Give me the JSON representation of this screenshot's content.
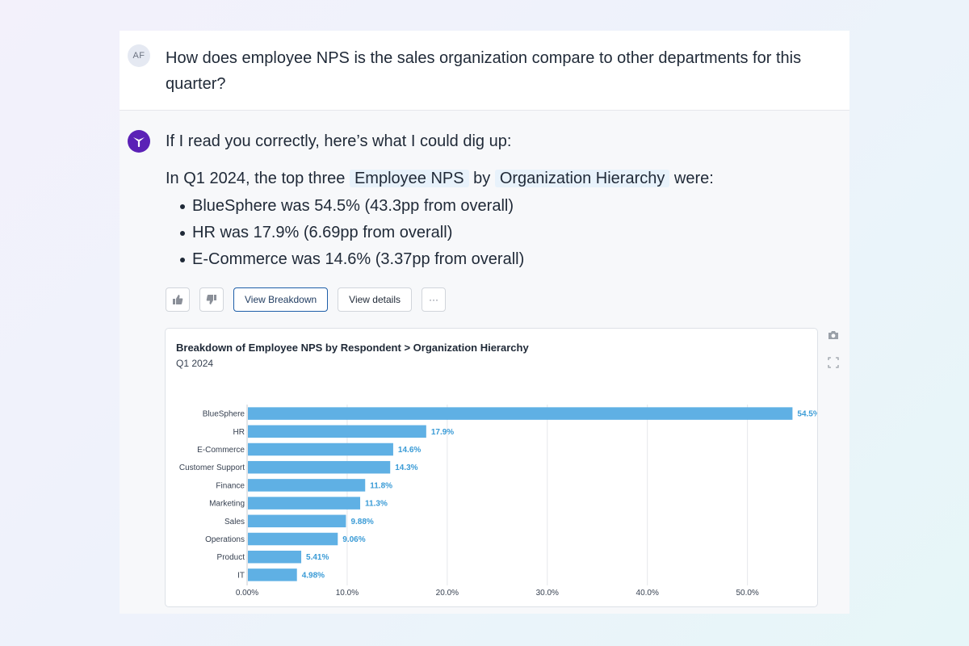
{
  "user": {
    "avatar_initials": "AF",
    "question": "How does employee NPS is the sales organization compare to other departments for this quarter?"
  },
  "response": {
    "intro": "If I read you correctly, here’s what I could dig up:",
    "summary_prefix": "In Q1 2024, the top three",
    "metric_chip": "Employee NPS",
    "by_word": "by",
    "dimension_chip": "Organization Hierarchy",
    "summary_suffix": "were:",
    "bullets": [
      "BlueSphere was 54.5% (43.3pp from overall)",
      "HR was 17.9% (6.69pp from overall)",
      "E-Commerce was 14.6% (3.37pp from overall)"
    ]
  },
  "actions": {
    "thumbs_up": "thumbs-up-icon",
    "thumbs_down": "thumbs-down-icon",
    "view_breakdown": "View Breakdown",
    "view_details": "View details",
    "more": "···"
  },
  "side_tools": {
    "camera": "camera-icon",
    "expand": "expand-icon"
  },
  "colors": {
    "bar": "#5fb0e4",
    "label": "#3a9bd6",
    "brand": "#5b21b6"
  },
  "chart_data": {
    "type": "bar",
    "orientation": "horizontal",
    "title": "Breakdown of Employee NPS by Respondent > Organization Hierarchy",
    "subtitle": "Q1 2024",
    "categories": [
      "BlueSphere",
      "HR",
      "E-Commerce",
      "Customer Support",
      "Finance",
      "Marketing",
      "Sales",
      "Operations",
      "Product",
      "IT"
    ],
    "values": [
      54.5,
      17.9,
      14.6,
      14.3,
      11.8,
      11.3,
      9.88,
      9.06,
      5.41,
      4.98
    ],
    "value_labels": [
      "54.5%",
      "17.9%",
      "14.6%",
      "14.3%",
      "11.8%",
      "11.3%",
      "9.88%",
      "9.06%",
      "5.41%",
      "4.98%"
    ],
    "xticks": [
      0,
      10,
      20,
      30,
      40,
      50
    ],
    "xtick_labels": [
      "0.00%",
      "10.0%",
      "20.0%",
      "30.0%",
      "40.0%",
      "50.0%"
    ],
    "xlim": [
      0,
      56
    ],
    "grid": true,
    "xlabel": "",
    "ylabel": ""
  }
}
